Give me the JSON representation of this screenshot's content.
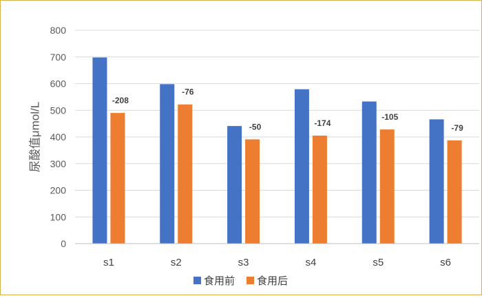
{
  "chart_data": {
    "type": "bar",
    "title": "",
    "xlabel": "",
    "ylabel": "尿酸值μmol/L",
    "categories": [
      "s1",
      "s2",
      "s3",
      "s4",
      "s5",
      "s6"
    ],
    "series": [
      {
        "name": "食用前",
        "color": "#4472C4",
        "values": [
          698,
          598,
          441,
          579,
          533,
          466
        ]
      },
      {
        "name": "食用后",
        "color": "#ED7D31",
        "values": [
          490,
          522,
          391,
          405,
          428,
          387
        ]
      }
    ],
    "data_labels": [
      "-208",
      "-76",
      "-50",
      "-174",
      "-105",
      "-79"
    ],
    "ylim": [
      0,
      800
    ],
    "yticks": [
      0,
      100,
      200,
      300,
      400,
      500,
      600,
      700,
      800
    ],
    "grid": true,
    "legend_position": "bottom"
  }
}
